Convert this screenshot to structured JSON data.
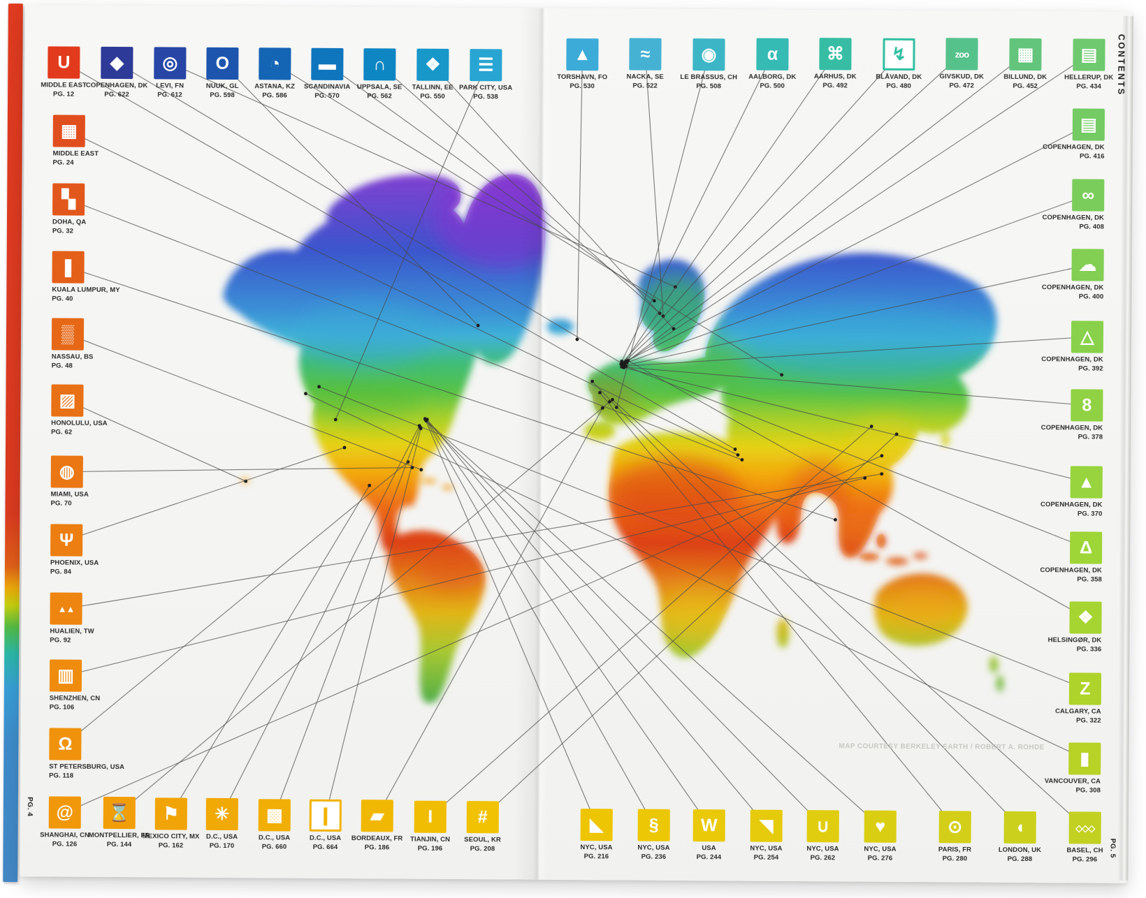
{
  "book": {
    "contents_label": "CONTENTS",
    "page_left": "PG. 4",
    "page_right": "PG. 5",
    "map_credit": "MAP COURTESY BERKELEY EARTH / ROBERT A. ROHDE",
    "spine_colors": [
      "#e03b20",
      "#eda90b",
      "#53bd45",
      "#2cb8a8",
      "#4388c6"
    ]
  },
  "groups": {
    "top_left": [
      {
        "label": "MIDDLE EAST",
        "page": "PG. 12",
        "color": "#e23a1c",
        "glyph": "U",
        "icon": "canopy-u-icon"
      },
      {
        "label": "COPENHAGEN, DK",
        "page": "PG. 622",
        "color": "#2e3a97",
        "glyph": "◆",
        "icon": "wedge-icon"
      },
      {
        "label": "LEVI, FN",
        "page": "PG. 612",
        "color": "#2746a5",
        "glyph": "◎",
        "icon": "double-spiral-icon"
      },
      {
        "label": "NUUK, GL",
        "page": "PG. 598",
        "color": "#1d55ae",
        "glyph": "O",
        "icon": "ring-icon"
      },
      {
        "label": "ASTANA, KZ",
        "page": "PG. 586",
        "color": "#1565b5",
        "glyph": "◔",
        "icon": "orbit-loop-icon"
      },
      {
        "label": "SCANDINAVIA",
        "page": "PG. 570",
        "color": "#0f76bd",
        "glyph": "▬",
        "icon": "beam-icon"
      },
      {
        "label": "UPPSALA, SE",
        "page": "PG. 562",
        "color": "#0e86c3",
        "glyph": "∩",
        "icon": "dome-icon"
      },
      {
        "label": "TALLINN, EE",
        "page": "PG. 550",
        "color": "#1897c9",
        "glyph": "❖",
        "icon": "scattered-squares-icon"
      },
      {
        "label": "PARK CITY, USA",
        "page": "PG. 538",
        "color": "#28a5d2",
        "glyph": "☰",
        "icon": "terraces-icon"
      }
    ],
    "top_right": [
      {
        "label": "TORSHAVN, FO",
        "page": "PG. 530",
        "color": "#3dabd8",
        "glyph": "▲",
        "icon": "basalt-rock-icon"
      },
      {
        "label": "NACKA, SE",
        "page": "PG. 522",
        "color": "#45b2d4",
        "glyph": "≈",
        "icon": "bridge-waves-icon"
      },
      {
        "label": "LE BRASSUS, CH",
        "page": "PG. 508",
        "color": "#3cb6c6",
        "glyph": "◉",
        "icon": "spiral-icon"
      },
      {
        "label": "AALBORG, DK",
        "page": "PG. 500",
        "color": "#35bab4",
        "glyph": "α",
        "icon": "alpha-loop-icon"
      },
      {
        "label": "AARHUS, DK",
        "page": "PG. 492",
        "color": "#36bda4",
        "glyph": "⌘",
        "icon": "loop-cluster-icon"
      },
      {
        "label": "BLÅVAND, DK",
        "page": "PG. 480",
        "color": "#2fbfa0",
        "glyph": "↯",
        "icon": "lightning-crack-icon",
        "variant": "outline"
      },
      {
        "label": "GIVSKUD, DK",
        "page": "PG. 472",
        "color": "#56c28b",
        "glyph": "zoo",
        "icon": "zoo-bike-icon"
      },
      {
        "label": "BILLUND, DK",
        "page": "PG. 452",
        "color": "#63c57c",
        "glyph": "▦",
        "icon": "brick-cluster-icon"
      },
      {
        "label": "HELLERUP, DK",
        "page": "PG. 434",
        "color": "#6ec96f",
        "glyph": "▤",
        "icon": "banded-hill-icon"
      }
    ],
    "left": [
      {
        "label": "MIDDLE EAST",
        "page": "PG. 24",
        "color": "#e04e1d",
        "glyph": "▦",
        "icon": "pixel-blocks-icon"
      },
      {
        "label": "DOHA, QA",
        "page": "PG. 32",
        "color": "#e2571b",
        "glyph": "▚",
        "icon": "pixel-pattern-icon"
      },
      {
        "label": "KUALA LUMPUR, MY",
        "page": "PG. 40",
        "color": "#e46019",
        "glyph": "❚",
        "icon": "minaret-icon"
      },
      {
        "label": "NASSAU, BS",
        "page": "PG. 48",
        "color": "#e66817",
        "glyph": "▒",
        "icon": "coral-texture-icon"
      },
      {
        "label": "HONOLULU, USA",
        "page": "PG. 62",
        "color": "#e87015",
        "glyph": "▨",
        "icon": "lattice-icon"
      },
      {
        "label": "MIAMI, USA",
        "page": "PG. 70",
        "color": "#ea7714",
        "glyph": "◍",
        "icon": "spirograph-icon"
      },
      {
        "label": "PHOENIX, USA",
        "page": "PG. 84",
        "color": "#ec7e12",
        "glyph": "Ψ",
        "icon": "cactus-icon"
      },
      {
        "label": "HUALIEN, TW",
        "page": "PG. 92",
        "color": "#ee8510",
        "glyph": "▲▲",
        "icon": "mountains-icon"
      },
      {
        "label": "SHENZHEN, CN",
        "page": "PG. 106",
        "color": "#ef8c0e",
        "glyph": "▥",
        "icon": "striped-facade-icon"
      },
      {
        "label": "ST PETERSBURG, USA",
        "page": "PG. 118",
        "color": "#f0920c",
        "glyph": "Ω",
        "icon": "loop-pier-icon"
      }
    ],
    "right": [
      {
        "label": "COPENHAGEN, DK",
        "page": "PG. 416",
        "color": "#74cb64",
        "glyph": "▤",
        "icon": "stacked-bands-icon"
      },
      {
        "label": "COPENHAGEN, DK",
        "page": "PG. 408",
        "color": "#7bcd5b",
        "glyph": "∞",
        "icon": "infinity-loop-icon"
      },
      {
        "label": "COPENHAGEN, DK",
        "page": "PG. 400",
        "color": "#82cf53",
        "glyph": "☁",
        "icon": "island-outline-icon"
      },
      {
        "label": "COPENHAGEN, DK",
        "page": "PG. 392",
        "color": "#89d14b",
        "glyph": "△",
        "icon": "triangle-blocks-icon"
      },
      {
        "label": "COPENHAGEN, DK",
        "page": "PG. 378",
        "color": "#90d244",
        "glyph": "8",
        "icon": "figure-eight-icon"
      },
      {
        "label": "COPENHAGEN, DK",
        "page": "PG. 370",
        "color": "#97d43d",
        "glyph": "▲",
        "icon": "slope-plant-icon"
      },
      {
        "label": "COPENHAGEN, DK",
        "page": "PG. 358",
        "color": "#9ed537",
        "glyph": "Δ",
        "icon": "ziggurat-icon"
      },
      {
        "label": "HELSINGØR, DK",
        "page": "PG. 336",
        "color": "#a6d531",
        "glyph": "❖",
        "icon": "shards-icon"
      },
      {
        "label": "CALGARY, CA",
        "page": "PG. 322",
        "color": "#aed32b",
        "glyph": "Z",
        "icon": "zigzag-stairs-icon"
      },
      {
        "label": "VANCOUVER, CA",
        "page": "PG. 308",
        "color": "#b8d226",
        "glyph": "▮",
        "icon": "twist-tower-icon"
      }
    ],
    "bottom_left": [
      {
        "label": "SHANGHAI, CN",
        "page": "PG. 126",
        "color": "#f1980a",
        "glyph": "@",
        "icon": "swirl-icon"
      },
      {
        "label": "MONTPELLIER, FR",
        "page": "PG. 144",
        "color": "#f19e09",
        "glyph": "⌛",
        "icon": "hourglass-icon"
      },
      {
        "label": "MEXICO CITY, MX",
        "page": "PG. 162",
        "color": "#f1a408",
        "glyph": "⚑",
        "icon": "lightning-flag-icon"
      },
      {
        "label": "D.C., USA",
        "page": "PG. 170",
        "color": "#f1a906",
        "glyph": "✳",
        "icon": "sunburst-icon"
      },
      {
        "label": "D.C., USA",
        "page": "PG. 660",
        "color": "#f1ae05",
        "glyph": "▩",
        "icon": "maze-icon"
      },
      {
        "label": "D.C., USA",
        "page": "PG. 664",
        "color": "#f1b304",
        "glyph": "❙",
        "icon": "obelisk-frame-icon",
        "variant": "outline"
      },
      {
        "label": "BORDEAUX, FR",
        "page": "PG. 186",
        "color": "#f1b803",
        "glyph": "▰",
        "icon": "carved-block-icon"
      },
      {
        "label": "TIANJIN, CN",
        "page": "PG. 196",
        "color": "#f0bd02",
        "glyph": "I",
        "icon": "spire-icon"
      },
      {
        "label": "SEOUL, KR",
        "page": "PG. 208",
        "color": "#f0c201",
        "glyph": "#",
        "icon": "hash-icon"
      }
    ],
    "bottom_right": [
      {
        "label": "NYC, USA",
        "page": "PG. 216",
        "color": "#eec503",
        "glyph": "◣",
        "icon": "ramp-icon"
      },
      {
        "label": "NYC, USA",
        "page": "PG. 236",
        "color": "#ecc706",
        "glyph": "§",
        "icon": "spiral-column-icon"
      },
      {
        "label": "USA",
        "page": "PG. 244",
        "color": "#e9c908",
        "glyph": "W",
        "icon": "molar-shape-icon"
      },
      {
        "label": "NYC, USA",
        "page": "PG. 254",
        "color": "#e5cb0b",
        "glyph": "◥",
        "icon": "pinwheel-icon"
      },
      {
        "label": "NYC, USA",
        "page": "PG. 262",
        "color": "#e0cd0f",
        "glyph": "∪",
        "icon": "u-turn-arrow-icon"
      },
      {
        "label": "NYC, USA",
        "page": "PG. 276",
        "color": "#dace13",
        "glyph": "♥",
        "icon": "striped-heart-icon"
      },
      {
        "label": "PARIS, FR",
        "page": "PG. 280",
        "color": "#d3cf18",
        "glyph": "⊙",
        "icon": "pebble-ring-icon"
      },
      {
        "label": "LONDON, UK",
        "page": "PG. 288",
        "color": "#cbd01c",
        "glyph": "◖",
        "icon": "twin-blobs-icon"
      },
      {
        "label": "BASEL, CH",
        "page": "PG. 296",
        "color": "#c2d121",
        "glyph": "◇◇◇",
        "icon": "diamond-wave-icon"
      }
    ]
  }
}
